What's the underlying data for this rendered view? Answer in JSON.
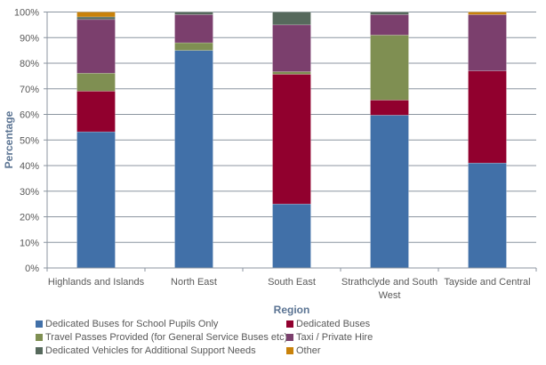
{
  "chart_data": {
    "type": "bar",
    "stacked": true,
    "title": "",
    "xlabel": "Region",
    "ylabel": "Percentage",
    "ylim": [
      0,
      100
    ],
    "yticks": [
      "0%",
      "10%",
      "20%",
      "30%",
      "40%",
      "50%",
      "60%",
      "70%",
      "80%",
      "90%",
      "100%"
    ],
    "ytick_values": [
      0,
      10,
      20,
      30,
      40,
      50,
      60,
      70,
      80,
      90,
      100
    ],
    "grid": true,
    "legend_position": "bottom",
    "categories": [
      [
        "Highlands and Islands"
      ],
      [
        "North East"
      ],
      [
        "South East"
      ],
      [
        "Strathclyde and South",
        "West"
      ],
      [
        "Tayside and Central"
      ]
    ],
    "category_names": [
      "Highlands and Islands",
      "North East",
      "South East",
      "Strathclyde and South West",
      "Tayside and Central"
    ],
    "series": [
      {
        "name": "Dedicated Buses for School Pupils Only",
        "color": "#4170a8",
        "values": [
          53.2,
          85.0,
          25.0,
          59.7,
          41.0
        ]
      },
      {
        "name": "Dedicated Buses",
        "color": "#91002e",
        "values": [
          15.9,
          0.0,
          50.7,
          5.9,
          36.0
        ]
      },
      {
        "name": "Travel Passes Provided (for General Service Buses etc)",
        "color": "#7f8f52",
        "values": [
          7.0,
          3.0,
          1.0,
          25.4,
          0.0
        ]
      },
      {
        "name": "Taxi / Private Hire",
        "color": "#7b3f6d",
        "values": [
          21.0,
          11.0,
          18.3,
          8.0,
          22.0
        ]
      },
      {
        "name": "Dedicated Vehicles for Additional Support Needs",
        "color": "#56695c",
        "values": [
          1.0,
          1.0,
          5.0,
          1.0,
          0.0
        ]
      },
      {
        "name": "Other",
        "color": "#c9820a",
        "values": [
          1.9,
          0.0,
          0.0,
          0.0,
          1.0
        ]
      }
    ]
  }
}
